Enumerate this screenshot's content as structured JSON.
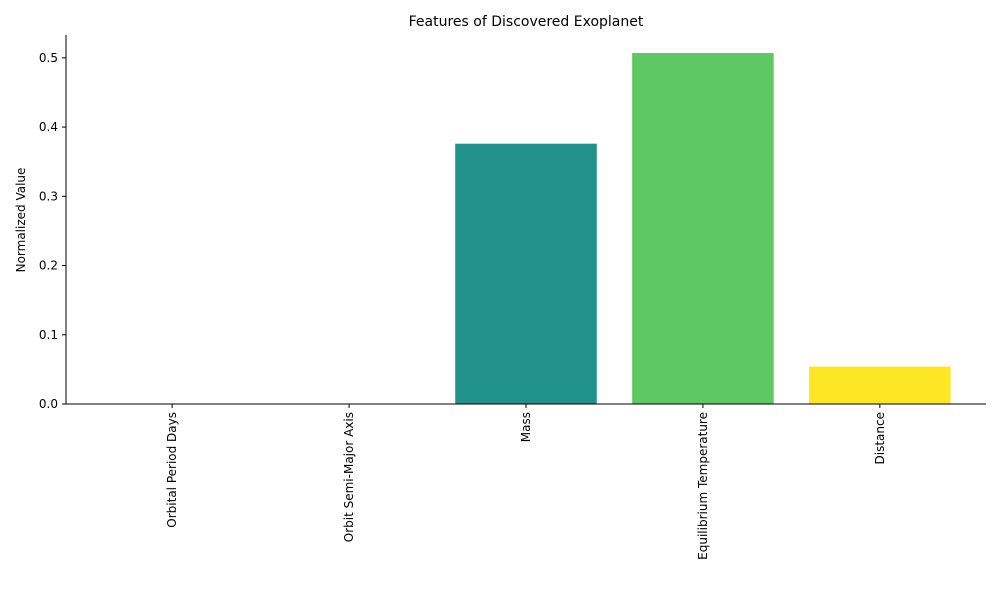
{
  "chart_data": {
    "type": "bar",
    "title": "Features of Discovered Exoplanet",
    "xlabel": "",
    "ylabel": "Normalized Value",
    "categories": [
      "Orbital Period Days",
      "Orbit Semi-Major Axis",
      "Mass",
      "Equilibrium Temperature",
      "Distance"
    ],
    "values": [
      0.0,
      0.0,
      0.376,
      0.507,
      0.054
    ],
    "colors": [
      "#440154",
      "#3b528b",
      "#21918c",
      "#5ec962",
      "#fde725"
    ],
    "ylim": [
      0,
      0.533
    ],
    "yticks": [
      "0.0",
      "0.1",
      "0.2",
      "0.3",
      "0.4",
      "0.5"
    ],
    "grid": false,
    "legend": "none"
  }
}
